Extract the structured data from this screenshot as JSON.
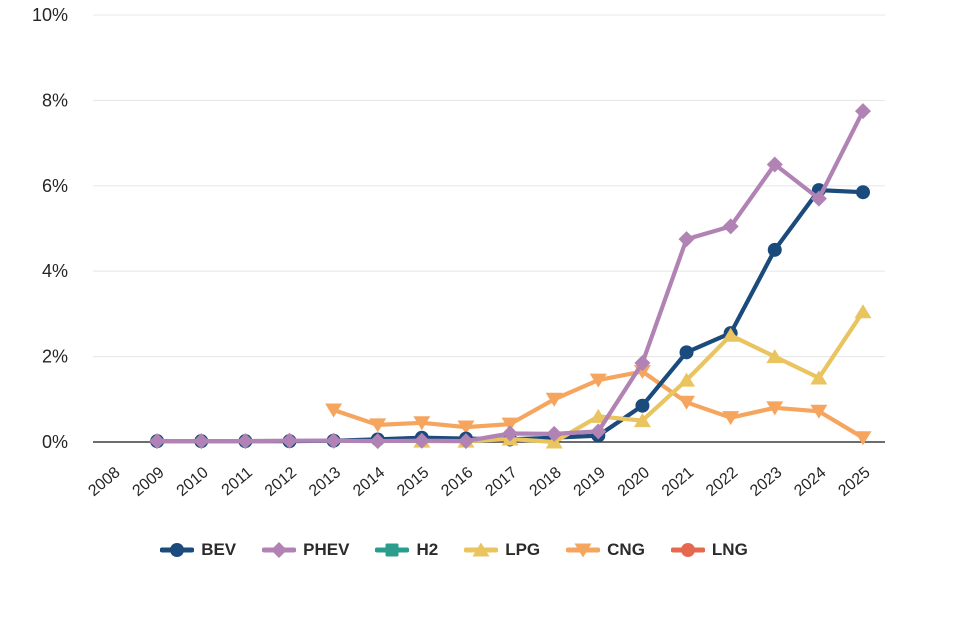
{
  "page": {
    "background": "#ffffff"
  },
  "chart_data": {
    "type": "line",
    "title": "",
    "xlabel": "",
    "ylabel": "",
    "x": [
      "2008",
      "2009",
      "2010",
      "2011",
      "2012",
      "2013",
      "2014",
      "2015",
      "2016",
      "2017",
      "2018",
      "2019",
      "2020",
      "2021",
      "2022",
      "2023",
      "2024",
      "2025"
    ],
    "ylim": [
      0,
      10
    ],
    "grid": true,
    "legend_position": "bottom",
    "y_ticks": [
      {
        "value": 10,
        "label": "10%"
      },
      {
        "value": 8,
        "label": "8%"
      },
      {
        "value": 6,
        "label": "6%"
      },
      {
        "value": 4,
        "label": "4%"
      },
      {
        "value": 2,
        "label": "2%"
      },
      {
        "value": 0,
        "label": "0%"
      }
    ],
    "series": [
      {
        "name": "BEV",
        "color": "#1b4a7c",
        "marker": "circle",
        "values": [
          null,
          0.02,
          0.02,
          0.02,
          0.02,
          0.03,
          0.06,
          0.1,
          0.08,
          0.06,
          0.1,
          0.15,
          0.85,
          2.1,
          2.55,
          4.5,
          5.9,
          5.85
        ]
      },
      {
        "name": "PHEV",
        "color": "#b183b4",
        "marker": "diamond",
        "values": [
          null,
          0.02,
          0.02,
          0.02,
          0.03,
          0.03,
          0.02,
          0.03,
          0.02,
          0.2,
          0.19,
          0.25,
          1.85,
          4.75,
          5.05,
          6.5,
          5.7,
          7.75
        ]
      },
      {
        "name": "H2",
        "color": "#2a9d8f",
        "marker": "square",
        "values": [
          null,
          null,
          null,
          null,
          null,
          null,
          null,
          null,
          null,
          null,
          null,
          null,
          null,
          null,
          null,
          null,
          null,
          null
        ]
      },
      {
        "name": "LPG",
        "color": "#e9c45f",
        "marker": "triangle-up",
        "values": [
          null,
          null,
          null,
          null,
          null,
          null,
          null,
          0.02,
          0.02,
          0.07,
          0.0,
          0.6,
          0.5,
          1.45,
          2.5,
          2.0,
          1.5,
          3.05
        ]
      },
      {
        "name": "CNG",
        "color": "#f6a55f",
        "marker": "triangle-down",
        "values": [
          null,
          null,
          null,
          null,
          null,
          0.75,
          0.4,
          0.45,
          0.35,
          0.42,
          1.0,
          1.45,
          1.65,
          0.93,
          0.57,
          0.8,
          0.72,
          0.1
        ]
      },
      {
        "name": "LNG",
        "color": "#e5694e",
        "marker": "circle",
        "values": [
          null,
          null,
          null,
          null,
          null,
          null,
          null,
          null,
          null,
          null,
          null,
          null,
          null,
          null,
          null,
          null,
          null,
          null
        ]
      }
    ],
    "colors": {
      "grid": "#e8e8e8",
      "axis": "#3d3d3d",
      "tick_label": "#252525"
    }
  }
}
